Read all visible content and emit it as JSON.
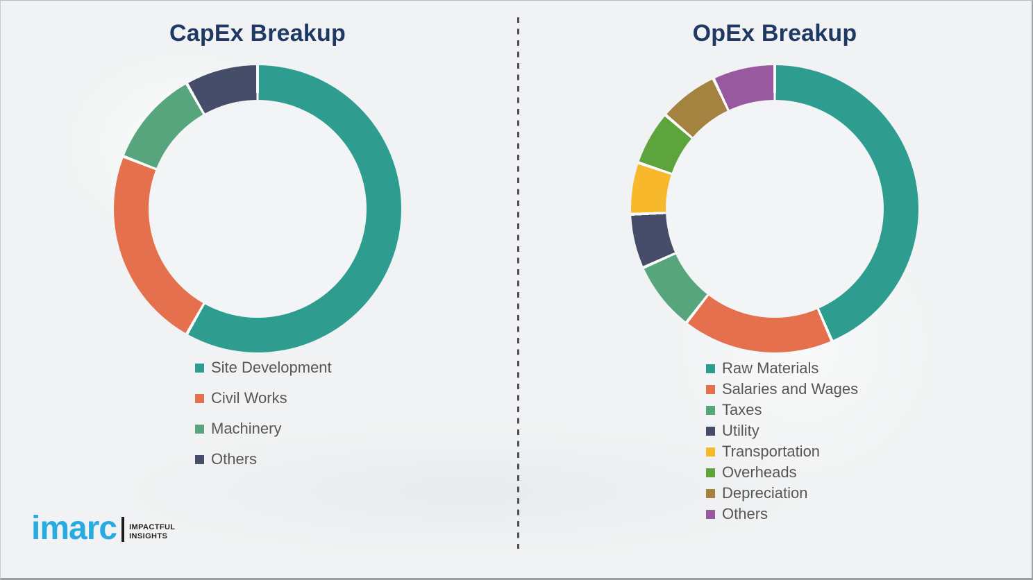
{
  "logo": {
    "brand": "imarc",
    "tagline_line1": "IMPACTFUL",
    "tagline_line2": "INSIGHTS",
    "brand_color": "#29ABE2"
  },
  "accent_colors": {
    "title_navy": "#1F3864",
    "legend_text_gray": "#565656"
  },
  "chart_data": [
    {
      "type": "pie",
      "subtype": "donut",
      "title": "CapEx Breakup",
      "categories": [
        "Site Development",
        "Civil Works",
        "Machinery",
        "Others"
      ],
      "values": [
        58.3,
        22.8,
        10.9,
        8.2
      ],
      "values_note": "percent share estimated from arc angles; no numeric labels shown in image",
      "colors": [
        "#2E9D90",
        "#E5704D",
        "#57A57C",
        "#464D69"
      ],
      "start_angle_deg": 0,
      "direction": "clockwise",
      "legend_position": "below-left",
      "grid": false
    },
    {
      "type": "pie",
      "subtype": "donut",
      "title": "OpEx Breakup",
      "categories": [
        "Raw Materials",
        "Salaries and Wages",
        "Taxes",
        "Utility",
        "Transportation",
        "Overheads",
        "Depreciation",
        "Others"
      ],
      "values": [
        43.5,
        17.0,
        7.8,
        6.1,
        5.8,
        6.1,
        6.7,
        7.0
      ],
      "values_note": "percent share estimated from arc angles; no numeric labels shown in image",
      "colors": [
        "#2E9D90",
        "#E5704D",
        "#57A57C",
        "#464D69",
        "#F7B82C",
        "#5EA43C",
        "#A3833F",
        "#98599E"
      ],
      "start_angle_deg": 0,
      "direction": "clockwise",
      "legend_position": "below-left",
      "grid": false
    }
  ]
}
